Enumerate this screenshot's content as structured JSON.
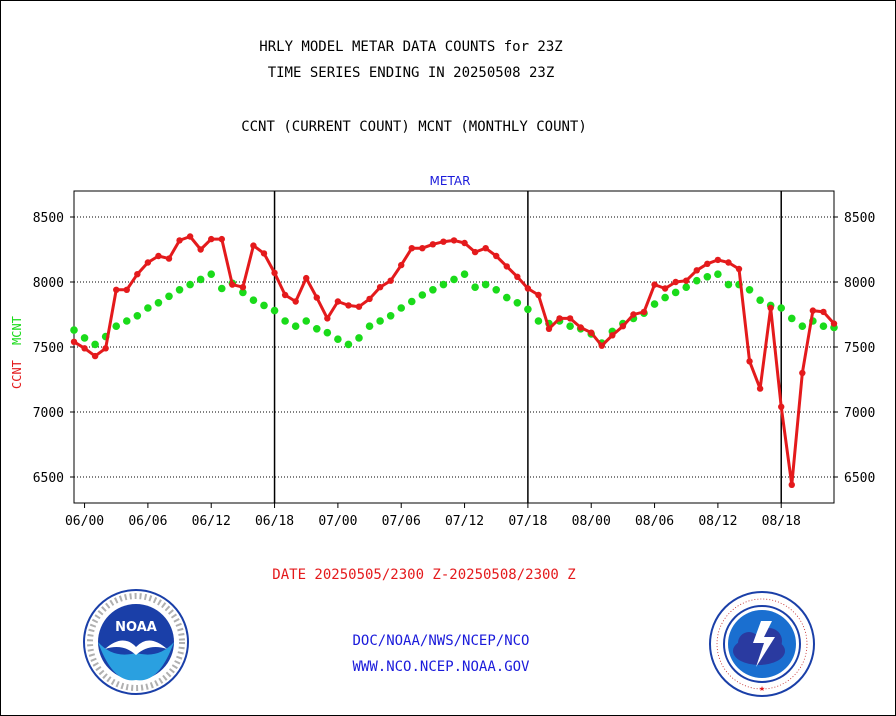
{
  "header": {
    "title": "HRLY MODEL METAR DATA COUNTS for 23Z",
    "subtitle": "TIME SERIES ENDING IN 20250508 23Z",
    "legend_line": "CCNT (CURRENT COUNT) MCNT (MONTHLY COUNT)"
  },
  "footer": {
    "date_range": "DATE 20250505/2300 Z-20250508/2300 Z",
    "link1": "DOC/NOAA/NWS/NCEP/NCO",
    "link2": "WWW.NCO.NCEP.NOAA.GOV"
  },
  "logos": {
    "noaa_text": "NOAA",
    "nws_text": "NATIONAL WEATHER SERVICE"
  },
  "colors": {
    "ccnt": "#e41a1c",
    "mcnt": "#1adb1a",
    "title_blue": "#1a1adb"
  },
  "chart_data": {
    "type": "line",
    "title": "METAR",
    "ylabel_left_1": "CCNT",
    "ylabel_left_2": "MCNT",
    "x_tick_labels": [
      "06/00",
      "06/06",
      "06/12",
      "06/18",
      "07/00",
      "07/06",
      "07/12",
      "07/18",
      "08/00",
      "08/06",
      "08/12",
      "08/18"
    ],
    "x_tick_hours": [
      0,
      6,
      12,
      18,
      24,
      30,
      36,
      42,
      48,
      54,
      60,
      66
    ],
    "day_dividers_hours": [
      18,
      42,
      66
    ],
    "x_range_hours": [
      -1,
      71
    ],
    "y_ticks": [
      6500,
      7000,
      7500,
      8000,
      8500
    ],
    "ylim": [
      6300,
      8700
    ],
    "grid": true,
    "series": [
      {
        "name": "CCNT",
        "color": "#e41a1c",
        "x": [
          -1,
          0,
          1,
          2,
          3,
          4,
          5,
          6,
          7,
          8,
          9,
          10,
          11,
          12,
          13,
          14,
          15,
          16,
          17,
          18,
          19,
          20,
          21,
          22,
          23,
          24,
          25,
          26,
          27,
          28,
          29,
          30,
          31,
          32,
          33,
          34,
          35,
          36,
          37,
          38,
          39,
          40,
          41,
          42,
          43,
          44,
          45,
          46,
          47,
          48,
          49,
          50,
          51,
          52,
          53,
          54,
          55,
          56,
          57,
          58,
          59,
          60,
          61,
          62,
          63,
          64,
          65,
          66,
          67,
          68,
          69,
          70,
          71
        ],
        "values": [
          7540,
          7490,
          7430,
          7490,
          7940,
          7940,
          8060,
          8150,
          8200,
          8180,
          8320,
          8350,
          8250,
          8330,
          8330,
          7980,
          7960,
          8280,
          8220,
          8070,
          7900,
          7850,
          8030,
          7880,
          7720,
          7850,
          7820,
          7810,
          7870,
          7960,
          8010,
          8130,
          8260,
          8260,
          8290,
          8310,
          8320,
          8300,
          8230,
          8260,
          8200,
          8120,
          8040,
          7950,
          7900,
          7640,
          7720,
          7720,
          7650,
          7610,
          7510,
          7590,
          7660,
          7750,
          7770,
          7980,
          7950,
          8000,
          8010,
          8090,
          8140,
          8170,
          8150,
          8100,
          7390,
          7180,
          7800,
          7040,
          6440,
          7300,
          7780,
          7770,
          7680
        ]
      },
      {
        "name": "MCNT",
        "color": "#1adb1a",
        "x": [
          -1,
          0,
          1,
          2,
          3,
          4,
          5,
          6,
          7,
          8,
          9,
          10,
          11,
          12,
          13,
          14,
          15,
          16,
          17,
          18,
          19,
          20,
          21,
          22,
          23,
          24,
          25,
          26,
          27,
          28,
          29,
          30,
          31,
          32,
          33,
          34,
          35,
          36,
          37,
          38,
          39,
          40,
          41,
          42,
          43,
          44,
          45,
          46,
          47,
          48,
          49,
          50,
          51,
          52,
          53,
          54,
          55,
          56,
          57,
          58,
          59,
          60,
          61,
          62,
          63,
          64,
          65,
          66,
          67,
          68,
          69,
          70,
          71
        ],
        "values": [
          7630,
          7570,
          7520,
          7580,
          7660,
          7700,
          7740,
          7800,
          7840,
          7890,
          7940,
          7980,
          8020,
          8060,
          7950,
          7990,
          7920,
          7860,
          7820,
          7780,
          7700,
          7660,
          7700,
          7640,
          7610,
          7560,
          7520,
          7570,
          7660,
          7700,
          7740,
          7800,
          7850,
          7900,
          7940,
          7980,
          8020,
          8060,
          7960,
          7980,
          7940,
          7880,
          7840,
          7790,
          7700,
          7680,
          7700,
          7660,
          7640,
          7600,
          7530,
          7620,
          7680,
          7720,
          7760,
          7830,
          7880,
          7920,
          7960,
          8010,
          8040,
          8060,
          7980,
          7980,
          7940,
          7860,
          7820,
          7800,
          7720,
          7660,
          7700,
          7660,
          7650
        ]
      }
    ]
  }
}
